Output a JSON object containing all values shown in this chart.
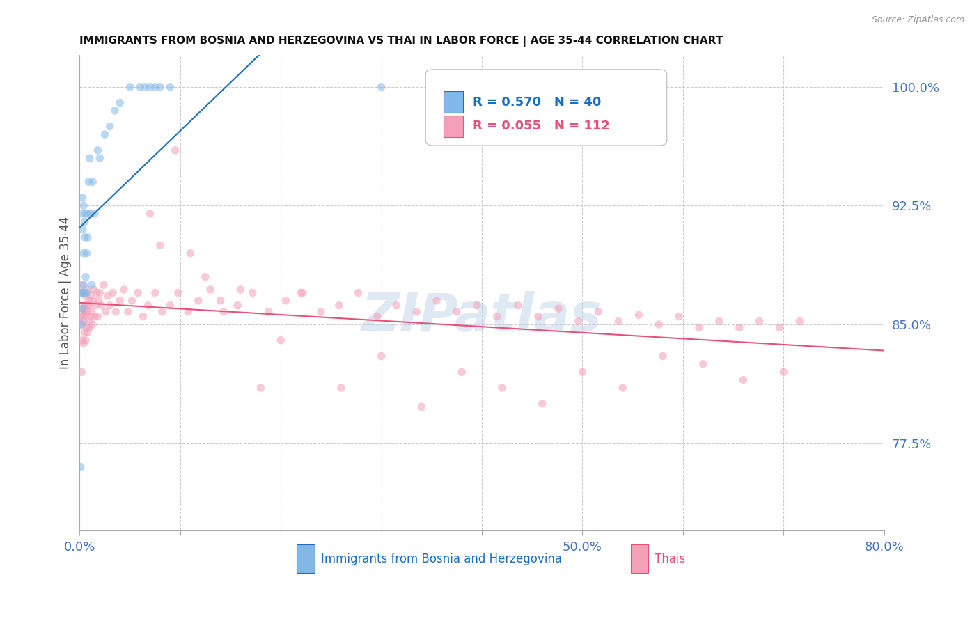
{
  "title": "IMMIGRANTS FROM BOSNIA AND HERZEGOVINA VS THAI IN LABOR FORCE | AGE 35-44 CORRELATION CHART",
  "source": "Source: ZipAtlas.com",
  "ylabel": "In Labor Force | Age 35-44",
  "xlim": [
    0.0,
    0.8
  ],
  "ylim": [
    0.72,
    1.02
  ],
  "yticks": [
    0.775,
    0.85,
    0.925,
    1.0
  ],
  "ytick_labels": [
    "77.5%",
    "85.0%",
    "92.5%",
    "100.0%"
  ],
  "xticks": [
    0.0,
    0.1,
    0.2,
    0.3,
    0.4,
    0.5,
    0.6,
    0.7,
    0.8
  ],
  "xtick_labels": [
    "0.0%",
    "",
    "",
    "",
    "",
    "50.0%",
    "",
    "",
    "80.0%"
  ],
  "legend_r_bosnia": "R = 0.570",
  "legend_n_bosnia": "N = 40",
  "legend_r_thai": "R = 0.055",
  "legend_n_thai": "N = 112",
  "color_bosnia": "#82b8e8",
  "color_thai": "#f4a0b8",
  "color_line_bosnia": "#1a6fc4",
  "color_line_thai": "#e8507a",
  "color_axis_labels": "#4472c4",
  "color_grid": "#cccccc",
  "bosnia_x": [
    0.001,
    0.002,
    0.002,
    0.002,
    0.003,
    0.003,
    0.003,
    0.003,
    0.004,
    0.004,
    0.004,
    0.005,
    0.005,
    0.005,
    0.006,
    0.006,
    0.007,
    0.007,
    0.008,
    0.008,
    0.009,
    0.01,
    0.011,
    0.012,
    0.013,
    0.015,
    0.018,
    0.02,
    0.025,
    0.03,
    0.035,
    0.04,
    0.05,
    0.06,
    0.065,
    0.07,
    0.075,
    0.08,
    0.09,
    0.3
  ],
  "bosnia_y": [
    0.76,
    0.85,
    0.87,
    0.92,
    0.86,
    0.87,
    0.91,
    0.93,
    0.875,
    0.895,
    0.925,
    0.87,
    0.905,
    0.915,
    0.88,
    0.92,
    0.87,
    0.895,
    0.905,
    0.92,
    0.94,
    0.955,
    0.92,
    0.875,
    0.94,
    0.92,
    0.96,
    0.955,
    0.97,
    0.975,
    0.985,
    0.99,
    1.0,
    1.0,
    1.0,
    1.0,
    1.0,
    1.0,
    1.0,
    1.0
  ],
  "thai_x": [
    0.001,
    0.001,
    0.002,
    0.002,
    0.002,
    0.003,
    0.003,
    0.003,
    0.004,
    0.004,
    0.004,
    0.005,
    0.005,
    0.005,
    0.006,
    0.006,
    0.006,
    0.007,
    0.007,
    0.007,
    0.008,
    0.008,
    0.009,
    0.009,
    0.01,
    0.01,
    0.011,
    0.011,
    0.012,
    0.013,
    0.013,
    0.014,
    0.015,
    0.016,
    0.017,
    0.018,
    0.019,
    0.02,
    0.022,
    0.024,
    0.026,
    0.028,
    0.03,
    0.033,
    0.036,
    0.04,
    0.044,
    0.048,
    0.052,
    0.058,
    0.063,
    0.068,
    0.075,
    0.082,
    0.09,
    0.098,
    0.108,
    0.118,
    0.13,
    0.143,
    0.157,
    0.172,
    0.188,
    0.205,
    0.222,
    0.24,
    0.258,
    0.277,
    0.296,
    0.315,
    0.335,
    0.355,
    0.375,
    0.395,
    0.415,
    0.436,
    0.456,
    0.476,
    0.496,
    0.516,
    0.536,
    0.556,
    0.576,
    0.596,
    0.616,
    0.636,
    0.656,
    0.676,
    0.696,
    0.716,
    0.07,
    0.08,
    0.095,
    0.11,
    0.125,
    0.14,
    0.16,
    0.18,
    0.2,
    0.22,
    0.26,
    0.3,
    0.34,
    0.38,
    0.42,
    0.46,
    0.5,
    0.54,
    0.58,
    0.62,
    0.66,
    0.7
  ],
  "thai_y": [
    0.855,
    0.87,
    0.82,
    0.85,
    0.875,
    0.84,
    0.855,
    0.86,
    0.838,
    0.852,
    0.87,
    0.845,
    0.862,
    0.858,
    0.84,
    0.856,
    0.868,
    0.848,
    0.858,
    0.872,
    0.845,
    0.862,
    0.852,
    0.865,
    0.848,
    0.862,
    0.855,
    0.868,
    0.858,
    0.85,
    0.865,
    0.872,
    0.855,
    0.862,
    0.87,
    0.855,
    0.865,
    0.87,
    0.862,
    0.875,
    0.858,
    0.868,
    0.862,
    0.87,
    0.858,
    0.865,
    0.872,
    0.858,
    0.865,
    0.87,
    0.855,
    0.862,
    0.87,
    0.858,
    0.862,
    0.87,
    0.858,
    0.865,
    0.872,
    0.858,
    0.862,
    0.87,
    0.858,
    0.865,
    0.87,
    0.858,
    0.862,
    0.87,
    0.855,
    0.862,
    0.858,
    0.865,
    0.858,
    0.862,
    0.855,
    0.862,
    0.855,
    0.86,
    0.852,
    0.858,
    0.852,
    0.856,
    0.85,
    0.855,
    0.848,
    0.852,
    0.848,
    0.852,
    0.848,
    0.852,
    0.92,
    0.9,
    0.96,
    0.895,
    0.88,
    0.865,
    0.872,
    0.81,
    0.84,
    0.87,
    0.81,
    0.83,
    0.798,
    0.82,
    0.81,
    0.8,
    0.82,
    0.81,
    0.83,
    0.825,
    0.815,
    0.82
  ],
  "scatter_size": 70,
  "scatter_alpha": 0.55,
  "regression_lw": 1.5,
  "watermark": "ZIPatlas",
  "watermark_color": "#b8cfe8",
  "watermark_alpha": 0.45,
  "watermark_fontsize": 55
}
